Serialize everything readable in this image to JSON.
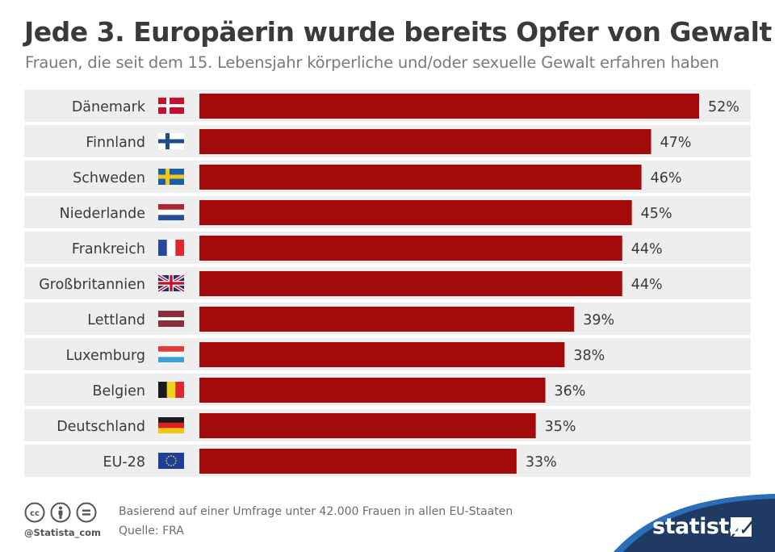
{
  "title": "Jede 3. Europäerin wurde bereits Opfer von Gewalt",
  "subtitle": "Frauen, die seit dem 15. Lebensjahr körperliche und/oder sexuelle Gewalt erfahren haben",
  "chart_data": {
    "type": "bar",
    "orientation": "horizontal",
    "unit": "%",
    "categories": [
      "Dänemark",
      "Finnland",
      "Schweden",
      "Niederlande",
      "Frankreich",
      "Großbritannien",
      "Lettland",
      "Luxemburg",
      "Belgien",
      "Deutschland",
      "EU-28"
    ],
    "flags": [
      "flag-denmark",
      "flag-finland",
      "flag-sweden",
      "flag-netherlands",
      "flag-france",
      "flag-uk",
      "flag-latvia",
      "flag-luxembourg",
      "flag-belgium",
      "flag-germany",
      "flag-eu"
    ],
    "values": [
      52,
      47,
      46,
      45,
      44,
      44,
      39,
      38,
      36,
      35,
      33
    ],
    "value_labels": [
      "52%",
      "47%",
      "46%",
      "45%",
      "44%",
      "44%",
      "39%",
      "38%",
      "36%",
      "35%",
      "33%"
    ],
    "xlim": [
      0,
      52
    ],
    "bar_color": "#a50a0a",
    "row_band_color": "#eeeeee",
    "label_color": "#3a3a3a"
  },
  "footer": {
    "note": "Basierend auf einer Umfrage unter 42.000 Frauen in allen EU-Staaten",
    "source": "Quelle: FRA",
    "handle": "@Statista_com",
    "brand": "statista",
    "license_icons": [
      "cc-icon",
      "by-attribution-icon",
      "nd-equals-icon"
    ]
  },
  "colors": {
    "brand_blue": "#1f3b63",
    "brand_light_blue": "#2a6fb8"
  }
}
